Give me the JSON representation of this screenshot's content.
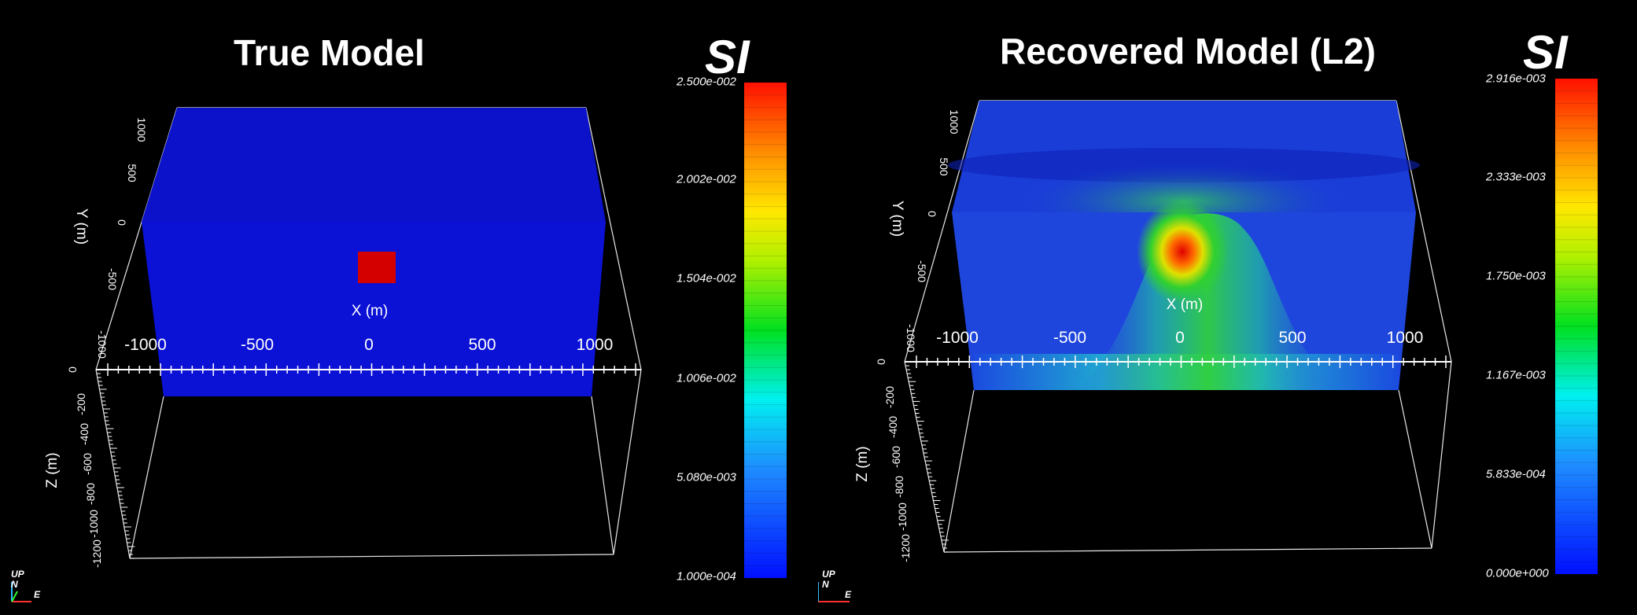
{
  "panels": [
    {
      "title": "True Model",
      "unit": "SI",
      "colorbar": {
        "labels": [
          "2.500e-002",
          "2.002e-002",
          "1.504e-002",
          "1.006e-002",
          "5.080e-003",
          "1.000e-004"
        ],
        "min": 0.0001,
        "max": 0.025
      },
      "x_axis": {
        "label": "X (m)",
        "ticks": [
          "-1000",
          "-500",
          "0",
          "500",
          "1000"
        ]
      },
      "y_axis": {
        "label": "Y (m)",
        "ticks": [
          "1000",
          "500",
          "0",
          "-500",
          "-1000"
        ]
      },
      "z_axis": {
        "label": "Z (m)",
        "ticks": [
          "0",
          "-200",
          "-400",
          "-600",
          "-800",
          "-1000",
          "-1200"
        ]
      }
    },
    {
      "title": "Recovered Model (L2)",
      "unit": "SI",
      "colorbar": {
        "labels": [
          "2.916e-003",
          "2.333e-003",
          "1.750e-003",
          "1.167e-003",
          "5.833e-004",
          "0.000e+000"
        ],
        "min": 0.0,
        "max": 0.002916
      },
      "x_axis": {
        "label": "X (m)",
        "ticks": [
          "-1000",
          "-500",
          "0",
          "500",
          "1000"
        ]
      },
      "y_axis": {
        "label": "Y (m)",
        "ticks": [
          "1000",
          "500",
          "0",
          "-500",
          "-1000"
        ]
      },
      "z_axis": {
        "label": "Z (m)",
        "ticks": [
          "0",
          "-200",
          "-400",
          "-600",
          "-800",
          "-1000",
          "-1200"
        ]
      }
    }
  ],
  "orientation_axes": {
    "up": "UP",
    "north": "N",
    "east": "E"
  },
  "colors": {
    "background": "#000000",
    "model_blue": "#0b12d6",
    "anomaly_red": "#d40000"
  }
}
